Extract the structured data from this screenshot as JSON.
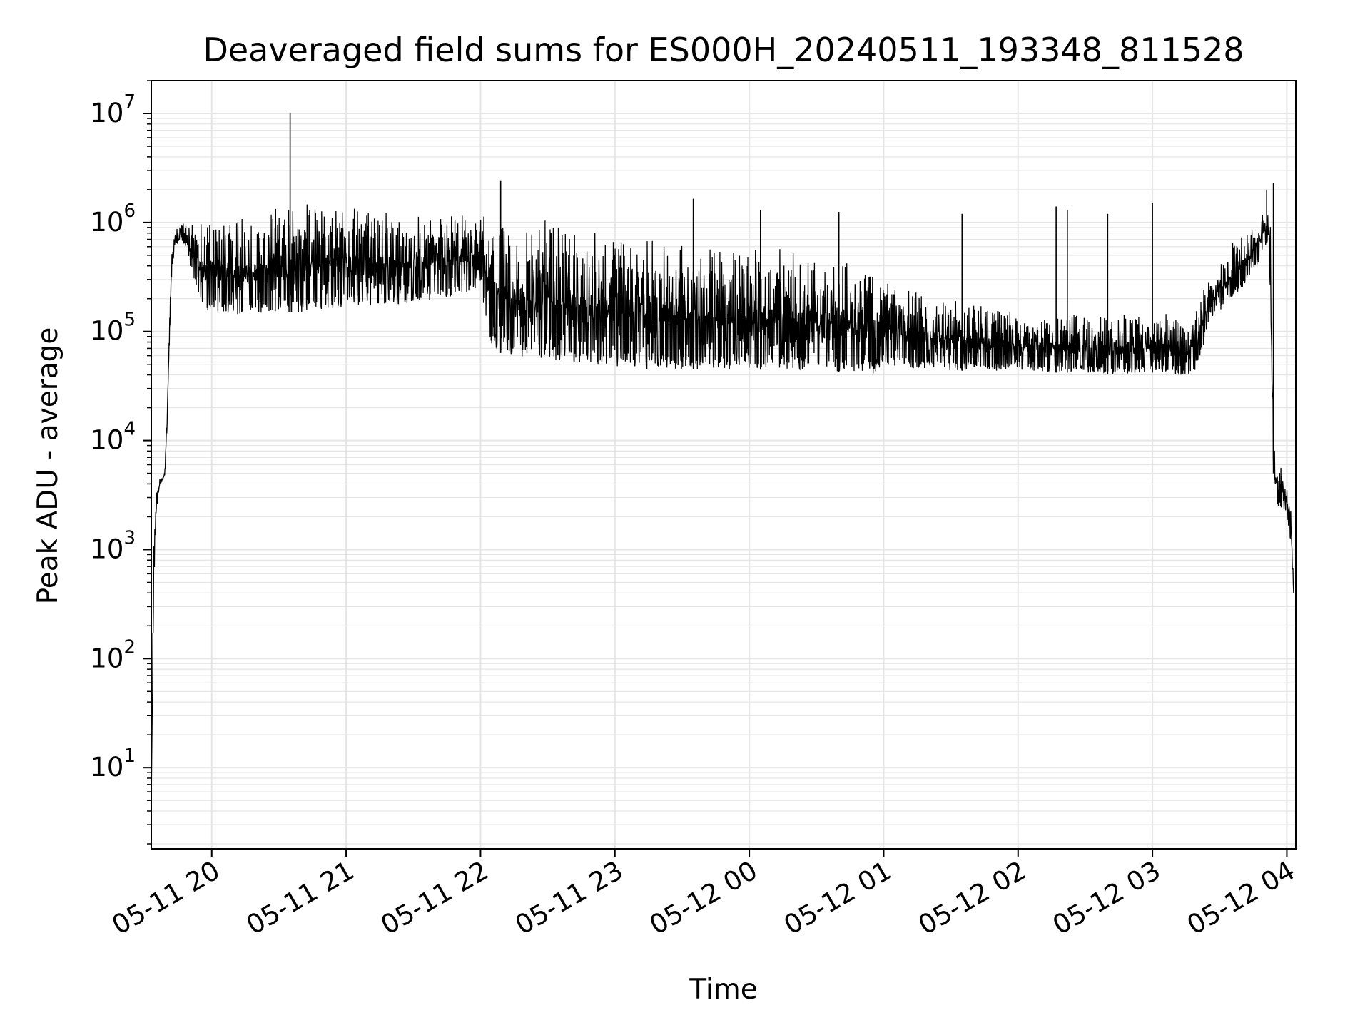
{
  "chart_data": {
    "type": "line",
    "title": "Deaveraged field sums for ES000H_20240511_193348_811528",
    "xlabel": "Time",
    "ylabel": "Peak ADU - average",
    "yscale": "log",
    "ylim": [
      1.8,
      20000000
    ],
    "xlim": [
      "2024-05-11 19:33",
      "2024-05-12 04:04"
    ],
    "grid": true,
    "line_color": "#000000",
    "grid_color": "#e5e5e5",
    "xticks": [
      {
        "t": "2024-05-11 20:00",
        "label": "05-11 20"
      },
      {
        "t": "2024-05-11 21:00",
        "label": "05-11 21"
      },
      {
        "t": "2024-05-11 22:00",
        "label": "05-11 22"
      },
      {
        "t": "2024-05-11 23:00",
        "label": "05-11 23"
      },
      {
        "t": "2024-05-12 00:00",
        "label": "05-12 00"
      },
      {
        "t": "2024-05-12 01:00",
        "label": "05-12 01"
      },
      {
        "t": "2024-05-12 02:00",
        "label": "05-12 02"
      },
      {
        "t": "2024-05-12 03:00",
        "label": "05-12 03"
      },
      {
        "t": "2024-05-12 04:00",
        "label": "05-12 04"
      }
    ],
    "yticks": [
      {
        "value": 10,
        "base": "10",
        "exp": "1"
      },
      {
        "value": 100,
        "base": "10",
        "exp": "2"
      },
      {
        "value": 1000,
        "base": "10",
        "exp": "3"
      },
      {
        "value": 10000,
        "base": "10",
        "exp": "4"
      },
      {
        "value": 100000,
        "base": "10",
        "exp": "5"
      },
      {
        "value": 1000000,
        "base": "10",
        "exp": "6"
      },
      {
        "value": 10000000,
        "base": "10",
        "exp": "7"
      }
    ],
    "series": [
      {
        "envelope": {
          "x": [
            "2024-05-11 19:33",
            "2024-05-11 19:34",
            "2024-05-11 19:35",
            "2024-05-11 19:37",
            "2024-05-11 19:39",
            "2024-05-11 19:40",
            "2024-05-11 19:41",
            "2024-05-11 19:42",
            "2024-05-11 19:44",
            "2024-05-11 19:46",
            "2024-05-11 19:48",
            "2024-05-11 19:52",
            "2024-05-11 19:55",
            "2024-05-11 19:58",
            "2024-05-11 20:05",
            "2024-05-11 20:15",
            "2024-05-11 20:25",
            "2024-05-11 20:35",
            "2024-05-11 20:45",
            "2024-05-11 21:00",
            "2024-05-11 21:15",
            "2024-05-11 21:30",
            "2024-05-11 21:45",
            "2024-05-11 22:00",
            "2024-05-11 22:05",
            "2024-05-11 22:15",
            "2024-05-11 22:30",
            "2024-05-11 22:45",
            "2024-05-11 23:00",
            "2024-05-11 23:15",
            "2024-05-11 23:30",
            "2024-05-11 23:45",
            "2024-05-12 00:00",
            "2024-05-12 00:15",
            "2024-05-12 00:30",
            "2024-05-12 00:45",
            "2024-05-12 00:55",
            "2024-05-12 01:00",
            "2024-05-12 01:15",
            "2024-05-12 01:30",
            "2024-05-12 01:45",
            "2024-05-12 02:00",
            "2024-05-12 02:15",
            "2024-05-12 02:30",
            "2024-05-12 02:45",
            "2024-05-12 03:00",
            "2024-05-12 03:05",
            "2024-05-12 03:10",
            "2024-05-12 03:15",
            "2024-05-12 03:20",
            "2024-05-12 03:25",
            "2024-05-12 03:30",
            "2024-05-12 03:35",
            "2024-05-12 03:40",
            "2024-05-12 03:45",
            "2024-05-12 03:48",
            "2024-05-12 03:50",
            "2024-05-12 03:52",
            "2024-05-12 03:53",
            "2024-05-12 03:54",
            "2024-05-12 03:55",
            "2024-05-12 03:57",
            "2024-05-12 04:00",
            "2024-05-12 04:02",
            "2024-05-12 04:03"
          ],
          "low": [
            4,
            300,
            2000,
            4000,
            4500,
            12000,
            60000,
            300000,
            600000,
            700000,
            600000,
            300000,
            200000,
            150000,
            150000,
            140000,
            140000,
            150000,
            150000,
            170000,
            170000,
            180000,
            200000,
            250000,
            70000,
            55000,
            55000,
            50000,
            48000,
            45000,
            45000,
            45000,
            45000,
            44000,
            43000,
            42000,
            40000,
            50000,
            45000,
            44000,
            43000,
            45000,
            42000,
            42000,
            40000,
            42000,
            42000,
            40000,
            40000,
            45000,
            110000,
            150000,
            200000,
            250000,
            350000,
            450000,
            600000,
            700000,
            100000,
            5000,
            2500,
            2500,
            2000,
            1000,
            400
          ],
          "high": [
            4,
            1000,
            3500,
            4600,
            5000,
            20000,
            100000,
            500000,
            900000,
            950000,
            1000000,
            1050000,
            1100000,
            1150000,
            1200000,
            1300000,
            1400000,
            1500000,
            1500000,
            1500000,
            1400000,
            1300000,
            1200000,
            1200000,
            1300000,
            1200000,
            1100000,
            1000000,
            900000,
            800000,
            700000,
            650000,
            600000,
            600000,
            550000,
            500000,
            450000,
            300000,
            250000,
            200000,
            180000,
            150000,
            150000,
            150000,
            150000,
            160000,
            160000,
            140000,
            120000,
            180000,
            320000,
            400000,
            650000,
            750000,
            1000000,
            1300000,
            1400000,
            1300000,
            900000,
            15000,
            6000,
            6000,
            4500,
            2500,
            400
          ]
        },
        "spikes": [
          {
            "t": "2024-05-11 20:35",
            "value": 10000000
          },
          {
            "t": "2024-05-11 22:09",
            "value": 2400000
          },
          {
            "t": "2024-05-11 23:35",
            "value": 1650000
          },
          {
            "t": "2024-05-12 00:05",
            "value": 1300000
          },
          {
            "t": "2024-05-12 00:40",
            "value": 1250000
          },
          {
            "t": "2024-05-12 01:35",
            "value": 1200000
          },
          {
            "t": "2024-05-12 02:17",
            "value": 1400000
          },
          {
            "t": "2024-05-12 02:22",
            "value": 1300000
          },
          {
            "t": "2024-05-12 02:40",
            "value": 1200000
          },
          {
            "t": "2024-05-12 03:00",
            "value": 1500000
          },
          {
            "t": "2024-05-12 03:51",
            "value": 2000000
          },
          {
            "t": "2024-05-12 03:54",
            "value": 2300000
          }
        ]
      }
    ]
  }
}
